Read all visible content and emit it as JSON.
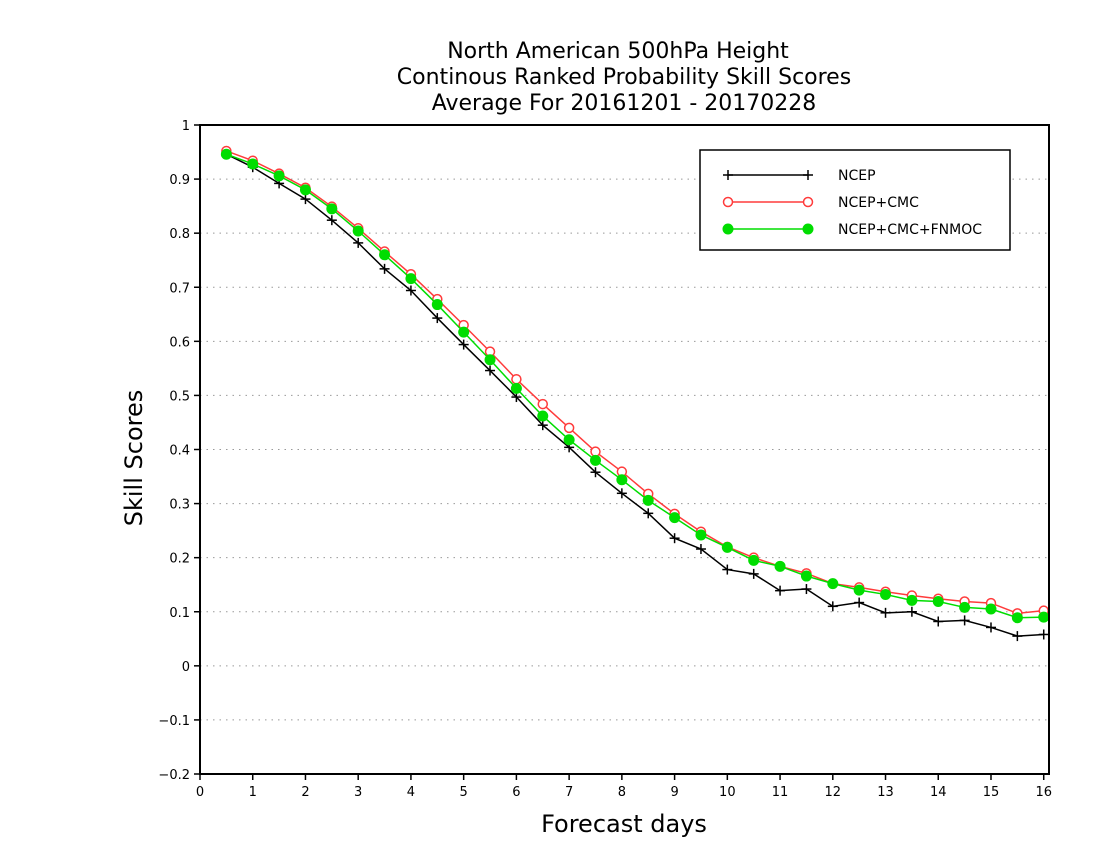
{
  "chart_data": {
    "type": "line",
    "title": [
      "North American 500hPa Height",
      "Continous Ranked Probability Skill Scores",
      "Average For 20161201 - 20170228"
    ],
    "xlabel": "Forecast days",
    "ylabel": "Skill Scores",
    "xlim": [
      0,
      16.1
    ],
    "ylim": [
      -0.2,
      1
    ],
    "xticks": [
      "0",
      "1",
      "2",
      "3",
      "4",
      "5",
      "6",
      "7",
      "8",
      "9",
      "10",
      "11",
      "12",
      "13",
      "14",
      "15",
      "16"
    ],
    "yticks": [
      "−0.2",
      "−0.1",
      "0",
      "0.1",
      "0.2",
      "0.3",
      "0.4",
      "0.5",
      "0.6",
      "0.7",
      "0.8",
      "0.9",
      "1"
    ],
    "grid": "horizontal dotted",
    "legend_position": "top-right",
    "x": [
      0.5,
      1,
      1.5,
      2,
      2.5,
      3,
      3.5,
      4,
      4.5,
      5,
      5.5,
      6,
      6.5,
      7,
      7.5,
      8,
      8.5,
      9,
      9.5,
      10,
      10.5,
      11,
      11.5,
      12,
      12.5,
      13,
      13.5,
      14,
      14.5,
      15,
      15.5,
      16
    ],
    "series": [
      {
        "name": "NCEP",
        "color": "#000000",
        "marker": "plus",
        "values": [
          0.946,
          0.922,
          0.892,
          0.863,
          0.824,
          0.782,
          0.734,
          0.694,
          0.643,
          0.594,
          0.546,
          0.497,
          0.445,
          0.404,
          0.358,
          0.319,
          0.282,
          0.236,
          0.216,
          0.178,
          0.17,
          0.139,
          0.142,
          0.11,
          0.117,
          0.098,
          0.1,
          0.082,
          0.084,
          0.071,
          0.055,
          0.058
        ]
      },
      {
        "name": "NCEP+CMC",
        "color": "#ff3b3b",
        "marker": "open-circle",
        "values": [
          0.952,
          0.934,
          0.91,
          0.884,
          0.849,
          0.809,
          0.766,
          0.724,
          0.678,
          0.63,
          0.581,
          0.53,
          0.484,
          0.44,
          0.396,
          0.359,
          0.318,
          0.281,
          0.248,
          0.22,
          0.2,
          0.184,
          0.171,
          0.152,
          0.145,
          0.137,
          0.13,
          0.124,
          0.119,
          0.116,
          0.097,
          0.102
        ]
      },
      {
        "name": "NCEP+CMC+FNMOC",
        "color": "#00dd00",
        "marker": "filled-circle",
        "values": [
          0.946,
          0.928,
          0.906,
          0.88,
          0.845,
          0.804,
          0.76,
          0.716,
          0.668,
          0.617,
          0.566,
          0.513,
          0.462,
          0.418,
          0.38,
          0.344,
          0.306,
          0.274,
          0.242,
          0.219,
          0.195,
          0.184,
          0.166,
          0.152,
          0.14,
          0.132,
          0.121,
          0.119,
          0.108,
          0.105,
          0.089,
          0.09
        ]
      }
    ]
  }
}
